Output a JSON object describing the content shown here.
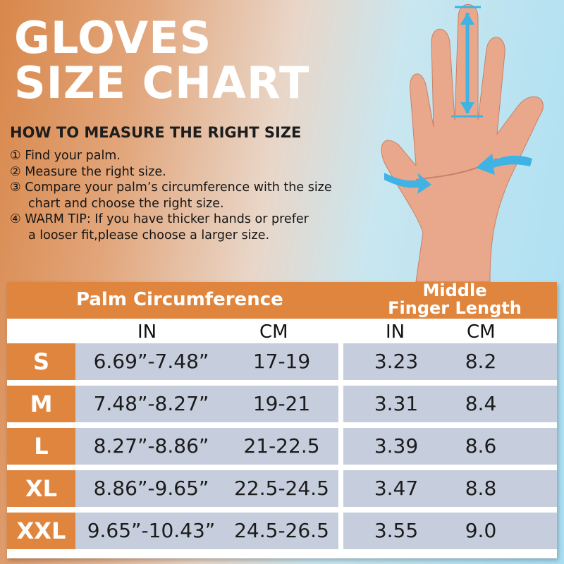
{
  "title": [
    "GLOVES",
    "SIZE CHART"
  ],
  "subheading": "HOW TO MEASURE THE RIGHT SIZE",
  "steps": [
    {
      "num": "①",
      "lines": [
        "Find your palm."
      ]
    },
    {
      "num": "②",
      "lines": [
        "Measure the right size."
      ]
    },
    {
      "num": "③",
      "lines": [
        "Compare your palm’s circumference with the size",
        "chart and choose the right size."
      ]
    },
    {
      "num": "④",
      "lines": [
        "WARM TIP: If you have thicker hands or prefer",
        "a looser fit,please choose a larger size."
      ]
    }
  ],
  "colors": {
    "orange": "#e0853e",
    "cell": "#c6cedd",
    "arrow": "#3fb3e3"
  },
  "table": {
    "palm_header": "Palm Circumference",
    "finger_header": [
      "Middle",
      "Finger Length"
    ],
    "units": [
      "IN",
      "CM",
      "IN",
      "CM"
    ],
    "rows": [
      {
        "size": "S",
        "palm_in": "6.69”-7.48”",
        "palm_cm": "17-19",
        "finger_in": "3.23",
        "finger_cm": "8.2"
      },
      {
        "size": "M",
        "palm_in": "7.48”-8.27”",
        "palm_cm": "19-21",
        "finger_in": "3.31",
        "finger_cm": "8.4"
      },
      {
        "size": "L",
        "palm_in": "8.27”-8.86”",
        "palm_cm": "21-22.5",
        "finger_in": "3.39",
        "finger_cm": "8.6"
      },
      {
        "size": "XL",
        "palm_in": "8.86”-9.65”",
        "palm_cm": "22.5-24.5",
        "finger_in": "3.47",
        "finger_cm": "8.8"
      },
      {
        "size": "XXL",
        "palm_in": "9.65”-10.43”",
        "palm_cm": "24.5-26.5",
        "finger_in": "3.55",
        "finger_cm": "9.0"
      }
    ]
  }
}
